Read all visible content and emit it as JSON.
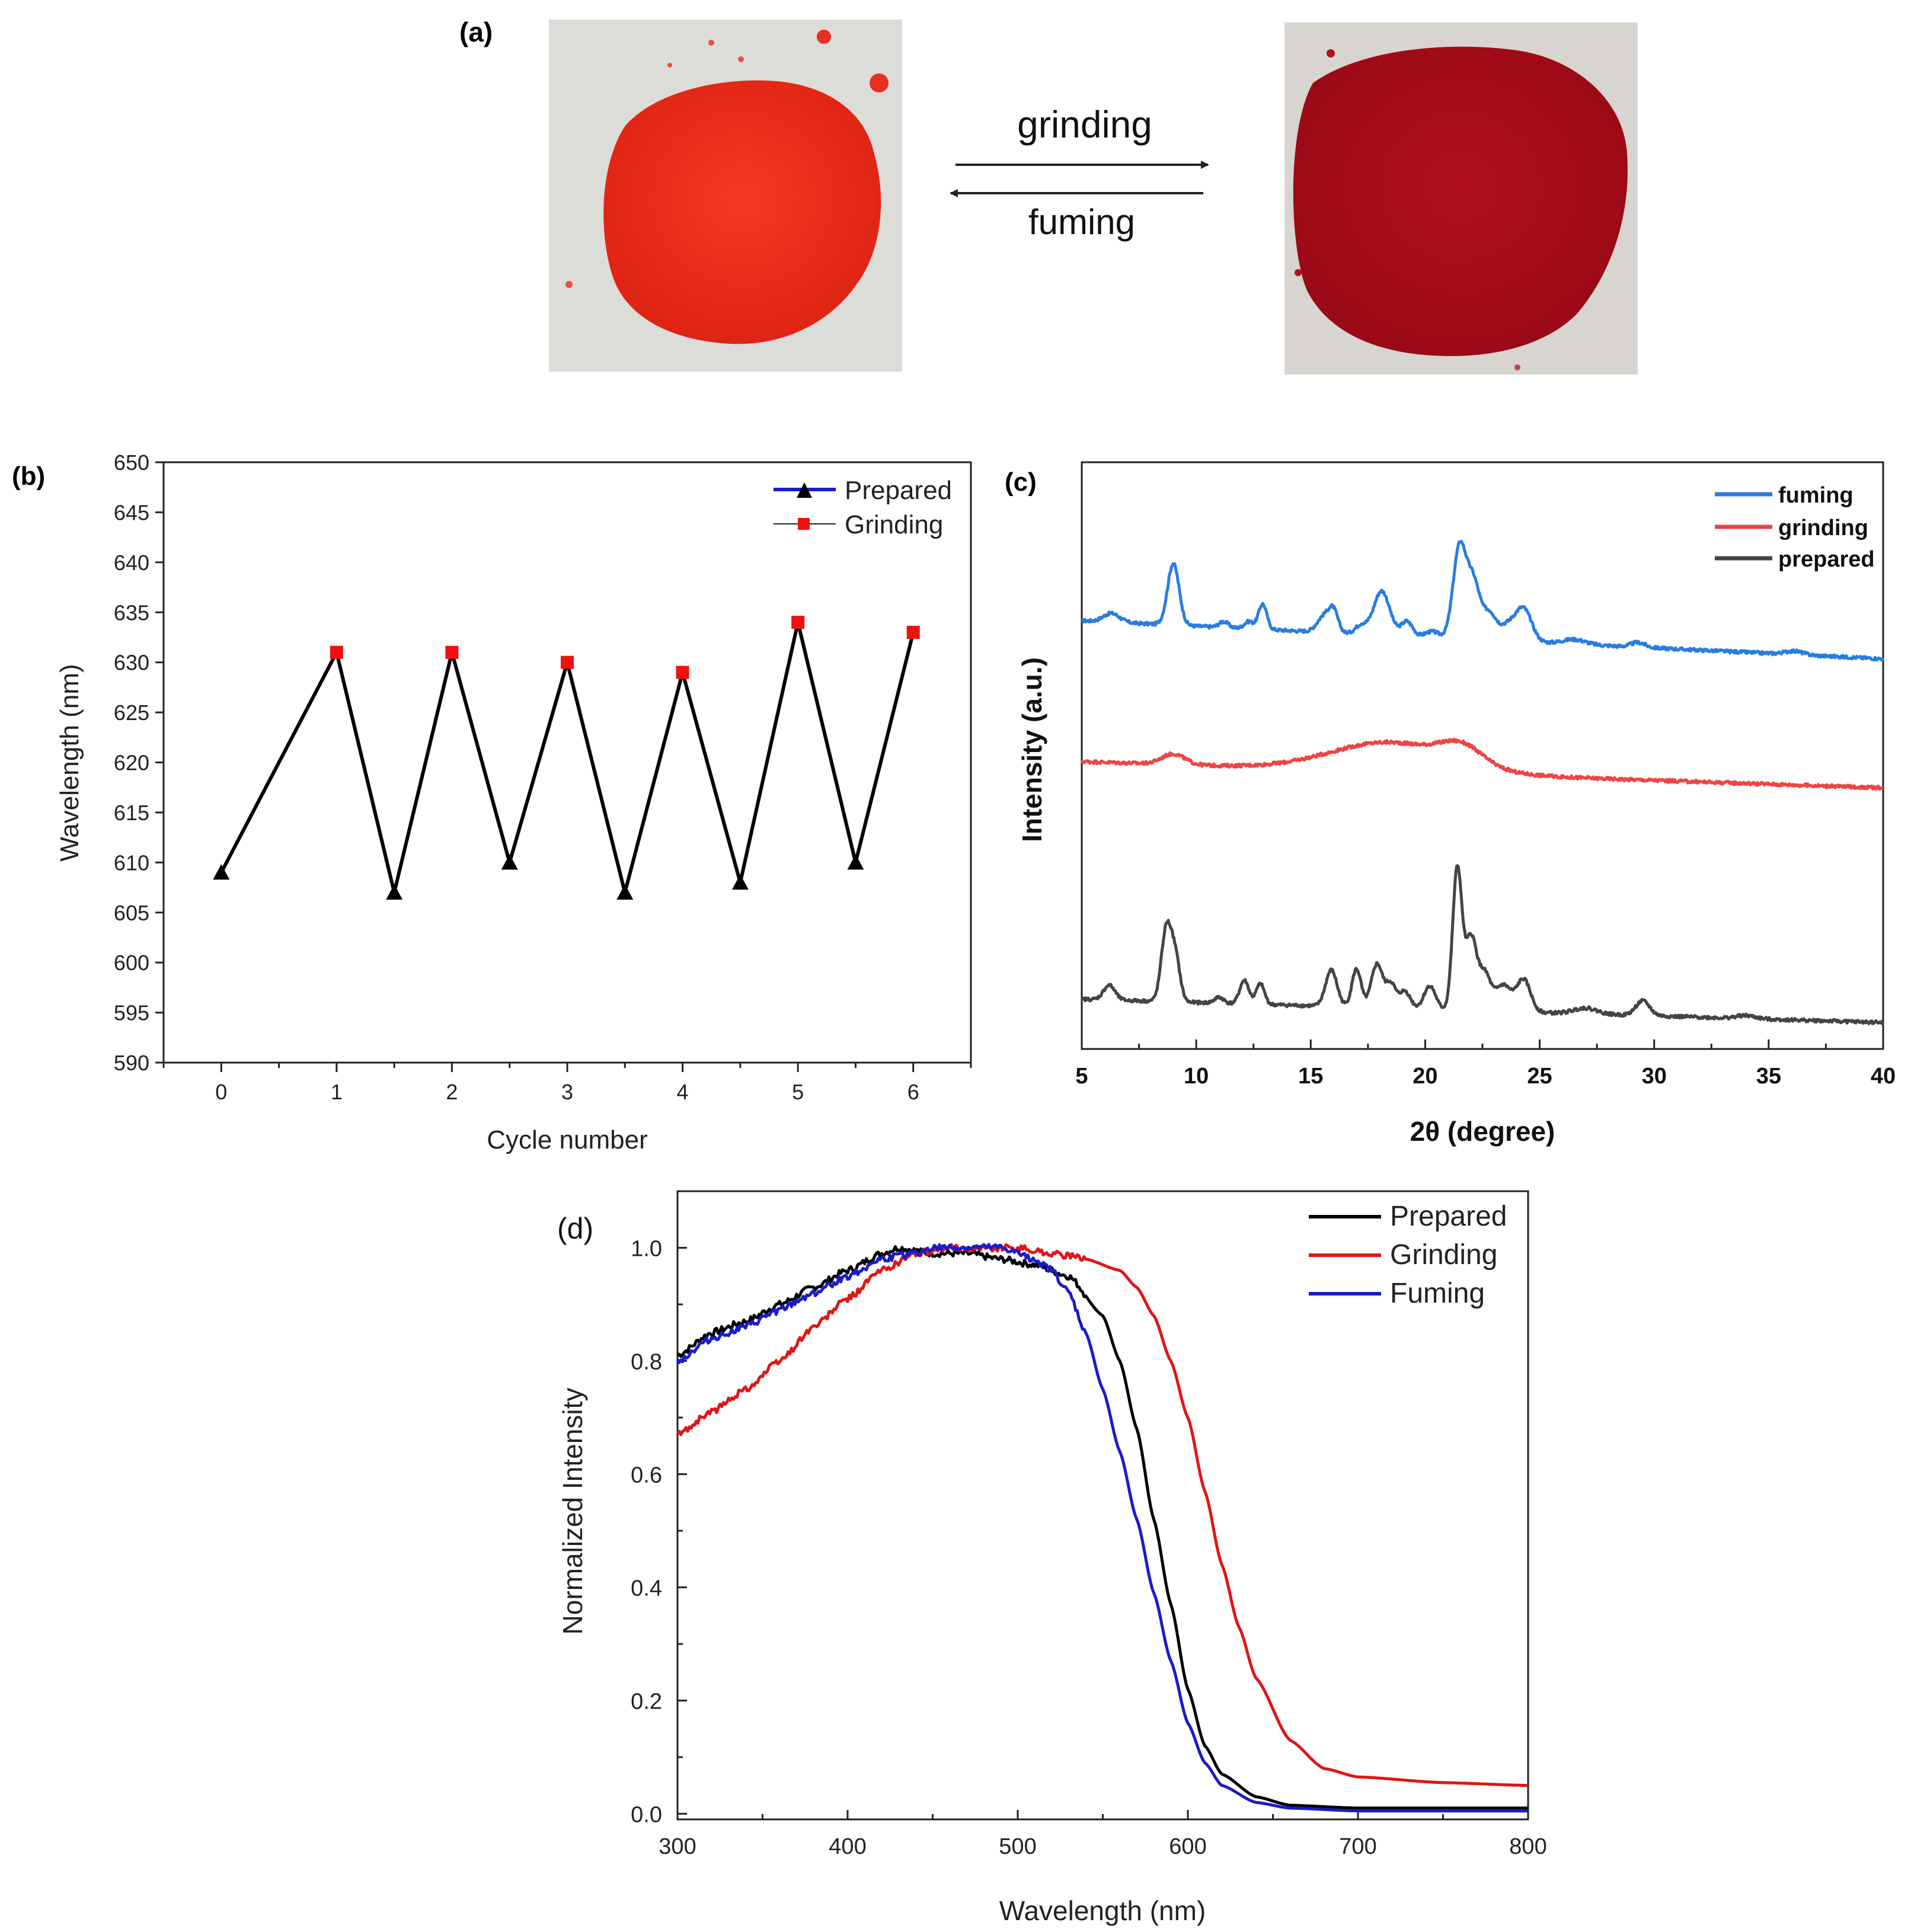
{
  "panel_a": {
    "label": "(a)",
    "forward_label": "grinding",
    "reverse_label": "fuming",
    "left_powder_color": "#ea2a1a",
    "right_powder_color": "#a80d18"
  },
  "chart_data": [
    {
      "panel_label": "(b)",
      "type": "line",
      "title": "",
      "xlabel": "Cycle number",
      "ylabel": "Wavelength (nm)",
      "xlim": [
        -0.5,
        6.5
      ],
      "ylim": [
        590,
        650
      ],
      "xticks": [
        "0",
        "1",
        "2",
        "3",
        "4",
        "5",
        "6"
      ],
      "yticks": [
        "590",
        "595",
        "600",
        "605",
        "610",
        "615",
        "620",
        "625",
        "630",
        "635",
        "640",
        "645",
        "650"
      ],
      "legend_position": "top-right",
      "series": [
        {
          "name": "Prepared",
          "color": "#000000",
          "line_color": "#1a1ad0",
          "marker": "triangle",
          "x": [
            0,
            1.5,
            2.5,
            3.5,
            4.5,
            5.5
          ],
          "y": [
            609,
            607,
            610,
            607,
            608,
            610
          ]
        },
        {
          "name": "Grinding",
          "color": "#ee1111",
          "marker": "square",
          "x": [
            1,
            2,
            3,
            4,
            5,
            6
          ],
          "y": [
            631,
            631,
            630,
            629,
            634,
            633
          ]
        }
      ],
      "zigzag": {
        "x": [
          0,
          1,
          1.5,
          2,
          2.5,
          3,
          3.5,
          4,
          4.5,
          5,
          5.5,
          6
        ],
        "y": [
          609,
          631,
          607,
          631,
          610,
          630,
          607,
          629,
          608,
          634,
          610,
          633
        ]
      }
    },
    {
      "panel_label": "(c)",
      "type": "line",
      "title": "",
      "xlabel": "2θ (degree)",
      "ylabel": "Intensity (a.u.)",
      "xlim": [
        5,
        40
      ],
      "ylim": [
        0,
        100
      ],
      "xticks": [
        "5",
        "10",
        "15",
        "20",
        "25",
        "30",
        "35",
        "40"
      ],
      "legend_position": "top-right",
      "series": [
        {
          "name": "fuming",
          "color": "#2a7de0",
          "baseline_start": 73,
          "baseline_end": 66.5,
          "peaks": [
            [
              6.3,
              1.5,
              0.35
            ],
            [
              9.0,
              10.5,
              0.25
            ],
            [
              11.2,
              1.0,
              0.2
            ],
            [
              12.3,
              1.2,
              0.2
            ],
            [
              12.9,
              4.3,
              0.18
            ],
            [
              15.6,
              2.8,
              0.3
            ],
            [
              16.0,
              3.2,
              0.2
            ],
            [
              17.2,
              1.5,
              0.25
            ],
            [
              18.1,
              7.5,
              0.35
            ],
            [
              19.2,
              2.5,
              0.25
            ],
            [
              20.3,
              1.0,
              0.3
            ],
            [
              21.5,
              15.5,
              0.28
            ],
            [
              22.1,
              9.5,
              0.28
            ],
            [
              22.8,
              4.5,
              0.3
            ],
            [
              23.6,
              2.5,
              0.35
            ],
            [
              24.3,
              5.5,
              0.35
            ],
            [
              26.5,
              0.8,
              0.5
            ],
            [
              29.3,
              0.8,
              0.3
            ],
            [
              36.1,
              0.6,
              0.4
            ]
          ]
        },
        {
          "name": "grinding",
          "color": "#ee4444",
          "baseline_start": 49,
          "baseline_end": 44.5,
          "peaks": [
            [
              9.0,
              1.8,
              0.5
            ],
            [
              18.5,
              5.0,
              2.6
            ],
            [
              21.6,
              3.0,
              0.9
            ]
          ]
        },
        {
          "name": "prepared",
          "color": "#444444",
          "baseline_start": 8.5,
          "baseline_end": 4.5,
          "peaks": [
            [
              6.2,
              2.5,
              0.25
            ],
            [
              8.7,
              12.5,
              0.22
            ],
            [
              9.1,
              7.0,
              0.2
            ],
            [
              11.0,
              1.0,
              0.2
            ],
            [
              12.1,
              4.0,
              0.2
            ],
            [
              12.8,
              3.5,
              0.18
            ],
            [
              15.9,
              6.2,
              0.25
            ],
            [
              17.0,
              6.5,
              0.2
            ],
            [
              17.9,
              7.5,
              0.25
            ],
            [
              18.5,
              4.0,
              0.2
            ],
            [
              19.1,
              3.0,
              0.25
            ],
            [
              20.2,
              4.0,
              0.25
            ],
            [
              21.4,
              24.0,
              0.2
            ],
            [
              22.0,
              12.5,
              0.25
            ],
            [
              22.6,
              6.0,
              0.25
            ],
            [
              23.4,
              4.5,
              0.35
            ],
            [
              24.3,
              5.5,
              0.3
            ],
            [
              27.0,
              1.0,
              0.5
            ],
            [
              29.5,
              2.5,
              0.3
            ],
            [
              34.0,
              0.5,
              0.4
            ]
          ]
        }
      ]
    },
    {
      "panel_label": "(d)",
      "type": "line",
      "title": "",
      "xlabel": "Wavelength (nm)",
      "ylabel": "Normalized Intensity",
      "xlim": [
        300,
        800
      ],
      "ylim": [
        -0.01,
        1.1
      ],
      "xticks": [
        "300",
        "400",
        "500",
        "600",
        "700",
        "800"
      ],
      "yticks": [
        "0.0",
        "0.2",
        "0.4",
        "0.6",
        "0.8",
        "1.0"
      ],
      "legend_position": "top-right",
      "series": [
        {
          "name": "Prepared",
          "color": "#000000",
          "x": [
            300,
            320,
            340,
            360,
            380,
            400,
            420,
            430,
            450,
            470,
            490,
            510,
            530,
            550,
            560,
            570,
            580,
            590,
            600,
            610,
            620,
            640,
            660,
            700,
            800
          ],
          "y": [
            0.81,
            0.85,
            0.87,
            0.9,
            0.93,
            0.96,
            0.99,
            1.0,
            0.99,
            0.99,
            0.98,
            0.97,
            0.95,
            0.88,
            0.8,
            0.68,
            0.52,
            0.37,
            0.22,
            0.12,
            0.07,
            0.03,
            0.015,
            0.01,
            0.01
          ]
        },
        {
          "name": "Grinding",
          "color": "#e01515",
          "x": [
            300,
            320,
            340,
            360,
            380,
            400,
            420,
            440,
            460,
            480,
            500,
            520,
            540,
            560,
            570,
            580,
            590,
            600,
            610,
            620,
            630,
            640,
            660,
            680,
            700,
            750,
            800
          ],
          "y": [
            0.67,
            0.71,
            0.75,
            0.8,
            0.86,
            0.91,
            0.96,
            0.99,
            1.0,
            1.0,
            1.0,
            0.99,
            0.98,
            0.96,
            0.93,
            0.88,
            0.8,
            0.7,
            0.57,
            0.44,
            0.33,
            0.24,
            0.13,
            0.08,
            0.065,
            0.055,
            0.05
          ]
        },
        {
          "name": "Fuming",
          "color": "#1a1acc",
          "x": [
            300,
            320,
            340,
            360,
            380,
            400,
            420,
            440,
            450,
            470,
            490,
            510,
            520,
            530,
            540,
            550,
            560,
            570,
            580,
            590,
            600,
            610,
            620,
            640,
            660,
            700,
            800
          ],
          "y": [
            0.8,
            0.84,
            0.86,
            0.89,
            0.92,
            0.95,
            0.98,
            0.99,
            1.0,
            1.0,
            1.0,
            0.98,
            0.96,
            0.92,
            0.85,
            0.75,
            0.64,
            0.52,
            0.39,
            0.27,
            0.16,
            0.09,
            0.05,
            0.02,
            0.01,
            0.005,
            0.005
          ]
        }
      ]
    }
  ]
}
